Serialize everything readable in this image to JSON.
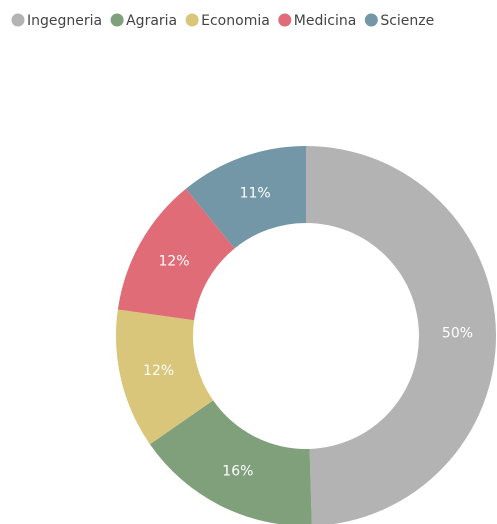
{
  "chart_data": {
    "type": "donut",
    "categories": [
      "Ingegneria",
      "Agraria",
      "Economia",
      "Medicina",
      "Scienze"
    ],
    "values": [
      50,
      16,
      12,
      12,
      11
    ],
    "value_labels": [
      "50%",
      "16%",
      "12%",
      "12%",
      "11%"
    ],
    "colors": [
      "#b3b3b3",
      "#80a07c",
      "#d9c67a",
      "#e06c78",
      "#7397a6"
    ],
    "legend": "top"
  }
}
